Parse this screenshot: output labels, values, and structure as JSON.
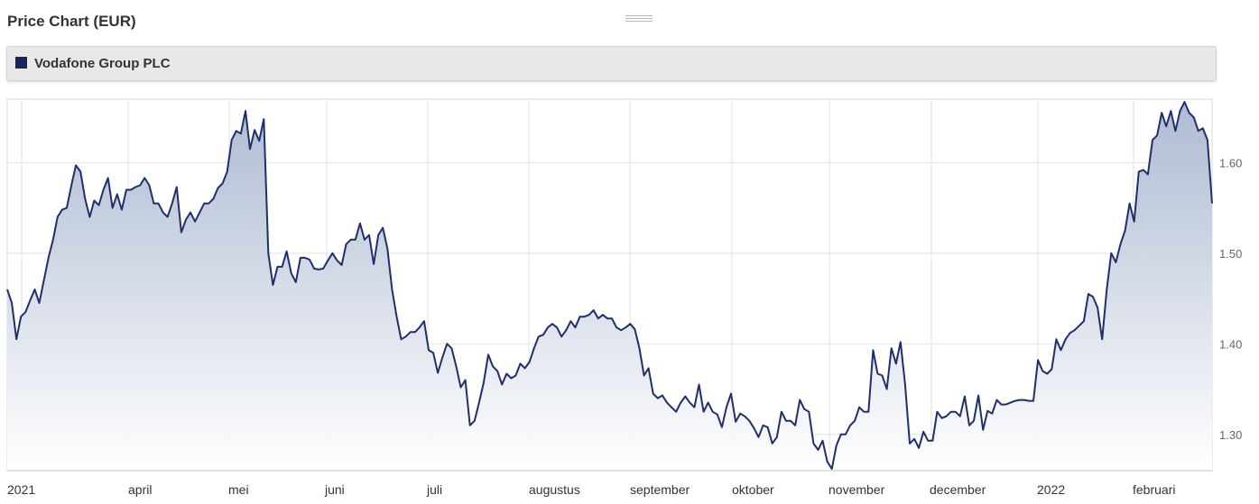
{
  "header": {
    "title": "Price Chart (EUR)"
  },
  "legend": {
    "label": "Vodafone Group PLC",
    "color": "#17245c"
  },
  "colors": {
    "line": "#1f2f6b",
    "fill_top": "#a9b7cf",
    "fill_bottom": "#ffffff",
    "grid": "#e2e2e2"
  },
  "chart_data": {
    "type": "area",
    "title": "Price Chart (EUR)",
    "xlabel": "",
    "ylabel": "",
    "ylim": [
      1.26,
      1.67
    ],
    "grid": true,
    "y_ticks": [
      "1.30",
      "1.40",
      "1.50",
      "1.60"
    ],
    "x_ticks": [
      "2021",
      "april",
      "mei",
      "juni",
      "juli",
      "augustus",
      "september",
      "oktober",
      "november",
      "december",
      "2022",
      "februari"
    ],
    "series": [
      {
        "name": "Vodafone Group PLC",
        "values": [
          1.46,
          1.445,
          1.405,
          1.43,
          1.435,
          1.448,
          1.46,
          1.445,
          1.47,
          1.495,
          1.515,
          1.54,
          1.548,
          1.55,
          1.575,
          1.597,
          1.59,
          1.56,
          1.54,
          1.558,
          1.553,
          1.57,
          1.583,
          1.55,
          1.565,
          1.548,
          1.57,
          1.57,
          1.573,
          1.575,
          1.583,
          1.575,
          1.555,
          1.555,
          1.545,
          1.54,
          1.555,
          1.573,
          1.523,
          1.537,
          1.545,
          1.535,
          1.545,
          1.555,
          1.555,
          1.56,
          1.572,
          1.577,
          1.59,
          1.625,
          1.635,
          1.632,
          1.657,
          1.615,
          1.636,
          1.624,
          1.648,
          1.5,
          1.465,
          1.485,
          1.485,
          1.502,
          1.478,
          1.468,
          1.495,
          1.495,
          1.493,
          1.483,
          1.482,
          1.483,
          1.492,
          1.5,
          1.492,
          1.487,
          1.51,
          1.515,
          1.515,
          1.533,
          1.515,
          1.52,
          1.488,
          1.52,
          1.528,
          1.505,
          1.46,
          1.43,
          1.405,
          1.408,
          1.413,
          1.413,
          1.418,
          1.425,
          1.393,
          1.39,
          1.368,
          1.385,
          1.4,
          1.395,
          1.375,
          1.352,
          1.36,
          1.31,
          1.315,
          1.335,
          1.357,
          1.388,
          1.375,
          1.37,
          1.355,
          1.367,
          1.362,
          1.365,
          1.378,
          1.373,
          1.38,
          1.395,
          1.408,
          1.41,
          1.418,
          1.422,
          1.418,
          1.408,
          1.415,
          1.425,
          1.418,
          1.43,
          1.43,
          1.432,
          1.437,
          1.428,
          1.432,
          1.428,
          1.428,
          1.418,
          1.415,
          1.418,
          1.422,
          1.416,
          1.395,
          1.365,
          1.373,
          1.345,
          1.34,
          1.343,
          1.335,
          1.33,
          1.325,
          1.335,
          1.342,
          1.335,
          1.33,
          1.355,
          1.325,
          1.335,
          1.325,
          1.322,
          1.308,
          1.33,
          1.345,
          1.314,
          1.323,
          1.32,
          1.315,
          1.307,
          1.297,
          1.31,
          1.308,
          1.29,
          1.297,
          1.325,
          1.315,
          1.315,
          1.31,
          1.338,
          1.328,
          1.325,
          1.29,
          1.283,
          1.293,
          1.27,
          1.262,
          1.288,
          1.3,
          1.3,
          1.31,
          1.315,
          1.33,
          1.325,
          1.325,
          1.393,
          1.367,
          1.365,
          1.35,
          1.395,
          1.378,
          1.402,
          1.355,
          1.29,
          1.295,
          1.285,
          1.303,
          1.293,
          1.293,
          1.325,
          1.318,
          1.32,
          1.325,
          1.325,
          1.32,
          1.342,
          1.31,
          1.315,
          1.343,
          1.305,
          1.326,
          1.323,
          1.338,
          1.333,
          1.333,
          1.335,
          1.337,
          1.338,
          1.338,
          1.337,
          1.337,
          1.382,
          1.37,
          1.367,
          1.372,
          1.405,
          1.393,
          1.405,
          1.412,
          1.415,
          1.42,
          1.425,
          1.455,
          1.452,
          1.44,
          1.405,
          1.46,
          1.5,
          1.49,
          1.51,
          1.525,
          1.555,
          1.535,
          1.59,
          1.592,
          1.587,
          1.625,
          1.63,
          1.655,
          1.64,
          1.657,
          1.635,
          1.657,
          1.667,
          1.655,
          1.65,
          1.635,
          1.638,
          1.625,
          1.555
        ]
      }
    ]
  }
}
